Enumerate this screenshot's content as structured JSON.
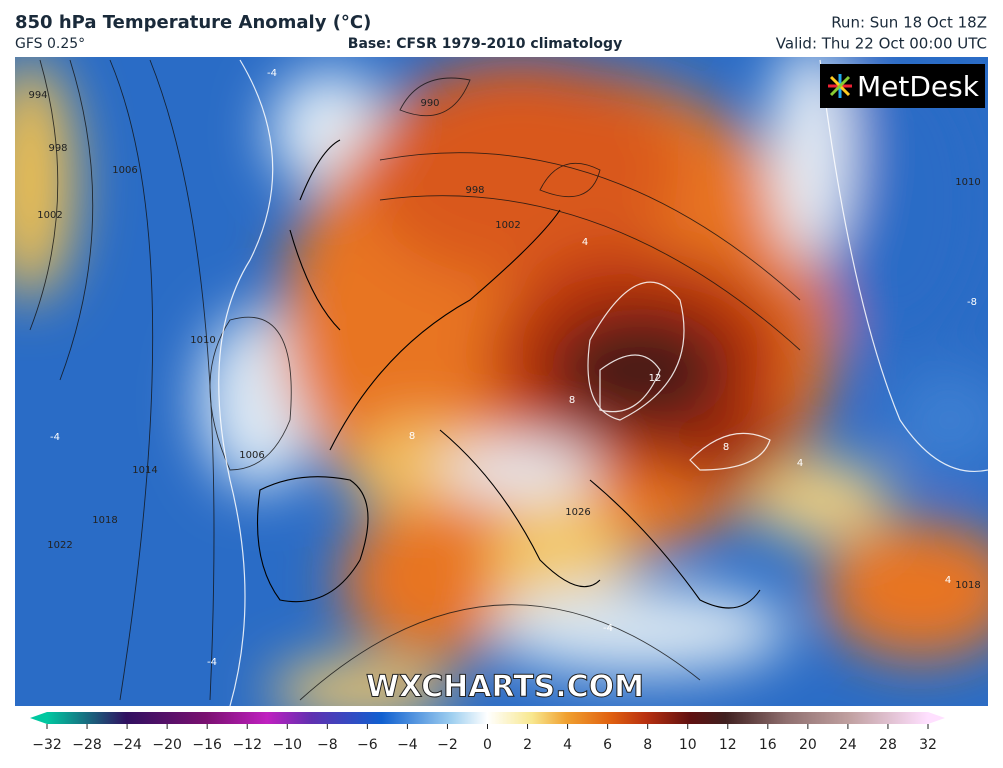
{
  "header": {
    "title": "850 hPa Temperature Anomaly (°C)",
    "model": "GFS 0.25°",
    "base": "Base: CFSR 1979-2010 climatology",
    "run": "Run: Sun 18 Oct 18Z",
    "valid": "Valid: Thu 22 Oct 00:00 UTC"
  },
  "logo": "MetDesk",
  "watermark": "WXCHARTS.COM",
  "map": {
    "contour_labels": [
      "994",
      "998",
      "1002",
      "1006",
      "1010",
      "1014",
      "1018",
      "1022",
      "1006",
      "990",
      "998",
      "1002",
      "1026",
      "1018",
      "1010",
      "-4",
      "-4",
      "4",
      "12",
      "8",
      "8",
      "8",
      "4",
      "-8",
      "-4",
      "-4",
      "4"
    ]
  },
  "colorbar": {
    "ticks": [
      {
        "value": -32,
        "label": "−32"
      },
      {
        "value": -28,
        "label": "−28"
      },
      {
        "value": -24,
        "label": "−24"
      },
      {
        "value": -20,
        "label": "−20"
      },
      {
        "value": -16,
        "label": "−16"
      },
      {
        "value": -12,
        "label": "−12"
      },
      {
        "value": -10,
        "label": "−10"
      },
      {
        "value": -8,
        "label": "−8"
      },
      {
        "value": -6,
        "label": "−6"
      },
      {
        "value": -4,
        "label": "−4"
      },
      {
        "value": -2,
        "label": "−2"
      },
      0,
      2,
      4,
      6,
      8,
      10,
      12,
      16,
      20,
      24,
      28,
      32
    ]
  }
}
